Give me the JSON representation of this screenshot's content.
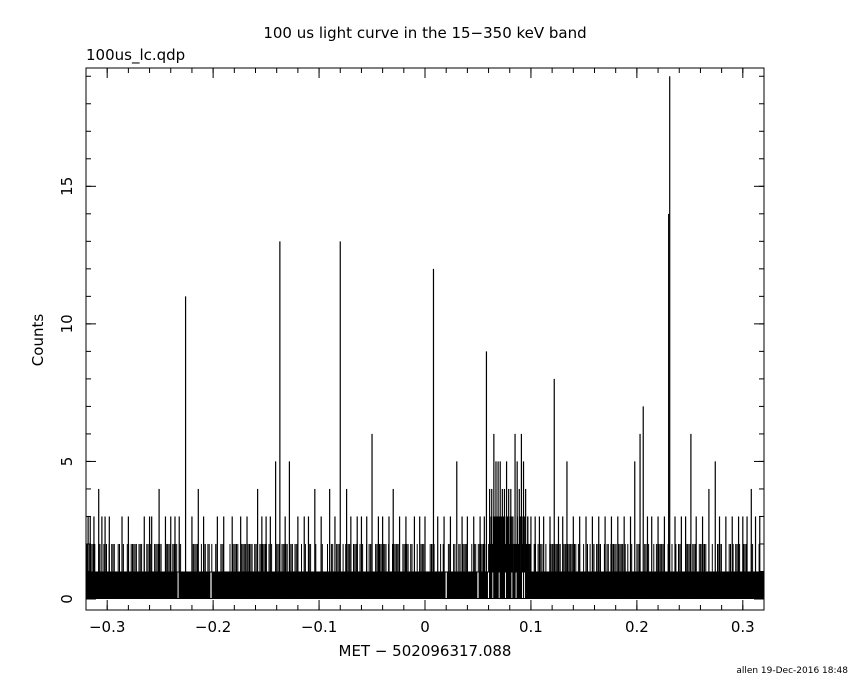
{
  "chart_data": {
    "type": "bar",
    "title": "100 us light curve in the 15−350 keV band",
    "subtitle": "100us_lc.qdp",
    "xlabel": "MET − 502096317.088",
    "ylabel": "Counts",
    "footer": "allen 19-Dec-2016 18:48",
    "xlim": [
      -0.32,
      0.32
    ],
    "ylim": [
      -0.4,
      19.3
    ],
    "bin_width": 0.0001,
    "xticks": [
      -0.3,
      -0.2,
      -0.1,
      0,
      0.1,
      0.2,
      0.3
    ],
    "xtick_labels": [
      "−0.3",
      "−0.2",
      "−0.1",
      "0",
      "0.1",
      "0.2",
      "0.3"
    ],
    "yticks": [
      0,
      5,
      10,
      15
    ],
    "ytick_labels": [
      "0",
      "5",
      "10",
      "15"
    ],
    "grid": false,
    "baseline": 1,
    "background_twos": {
      "x_ranges": [
        [
          -0.32,
          0.32
        ]
      ],
      "description_value": 2
    },
    "peaks": [
      {
        "x": -0.318,
        "y": 3
      },
      {
        "x": -0.316,
        "y": 3
      },
      {
        "x": -0.3125,
        "y": 3
      },
      {
        "x": -0.308,
        "y": 4
      },
      {
        "x": -0.305,
        "y": 3
      },
      {
        "x": -0.302,
        "y": 3
      },
      {
        "x": -0.298,
        "y": 3
      },
      {
        "x": -0.286,
        "y": 3
      },
      {
        "x": -0.28,
        "y": 3
      },
      {
        "x": -0.265,
        "y": 3
      },
      {
        "x": -0.26,
        "y": 3
      },
      {
        "x": -0.258,
        "y": 3
      },
      {
        "x": -0.251,
        "y": 4
      },
      {
        "x": -0.245,
        "y": 3
      },
      {
        "x": -0.24,
        "y": 3
      },
      {
        "x": -0.236,
        "y": 3
      },
      {
        "x": -0.232,
        "y": 3
      },
      {
        "x": -0.226,
        "y": 11
      },
      {
        "x": -0.22,
        "y": 3
      },
      {
        "x": -0.214,
        "y": 4
      },
      {
        "x": -0.209,
        "y": 3
      },
      {
        "x": -0.196,
        "y": 3
      },
      {
        "x": -0.19,
        "y": 3
      },
      {
        "x": -0.182,
        "y": 3
      },
      {
        "x": -0.174,
        "y": 3
      },
      {
        "x": -0.168,
        "y": 3
      },
      {
        "x": -0.158,
        "y": 4
      },
      {
        "x": -0.154,
        "y": 3
      },
      {
        "x": -0.15,
        "y": 3
      },
      {
        "x": -0.146,
        "y": 3
      },
      {
        "x": -0.141,
        "y": 5
      },
      {
        "x": -0.137,
        "y": 13
      },
      {
        "x": -0.132,
        "y": 3
      },
      {
        "x": -0.128,
        "y": 5
      },
      {
        "x": -0.12,
        "y": 3
      },
      {
        "x": -0.114,
        "y": 3
      },
      {
        "x": -0.11,
        "y": 3
      },
      {
        "x": -0.104,
        "y": 4
      },
      {
        "x": -0.098,
        "y": 3
      },
      {
        "x": -0.09,
        "y": 4
      },
      {
        "x": -0.085,
        "y": 3
      },
      {
        "x": -0.08,
        "y": 13
      },
      {
        "x": -0.074,
        "y": 4
      },
      {
        "x": -0.07,
        "y": 3
      },
      {
        "x": -0.064,
        "y": 3
      },
      {
        "x": -0.06,
        "y": 3
      },
      {
        "x": -0.055,
        "y": 3
      },
      {
        "x": -0.05,
        "y": 6
      },
      {
        "x": -0.044,
        "y": 3
      },
      {
        "x": -0.04,
        "y": 3
      },
      {
        "x": -0.034,
        "y": 3
      },
      {
        "x": -0.03,
        "y": 4
      },
      {
        "x": -0.024,
        "y": 3
      },
      {
        "x": -0.018,
        "y": 3
      },
      {
        "x": -0.01,
        "y": 3
      },
      {
        "x": -0.005,
        "y": 3
      },
      {
        "x": 0.0,
        "y": 3
      },
      {
        "x": 0.008,
        "y": 12
      },
      {
        "x": 0.012,
        "y": 3
      },
      {
        "x": 0.018,
        "y": 3
      },
      {
        "x": 0.024,
        "y": 3
      },
      {
        "x": 0.03,
        "y": 5
      },
      {
        "x": 0.035,
        "y": 3
      },
      {
        "x": 0.04,
        "y": 3
      },
      {
        "x": 0.046,
        "y": 3
      },
      {
        "x": 0.052,
        "y": 3
      },
      {
        "x": 0.056,
        "y": 3
      },
      {
        "x": 0.058,
        "y": 9
      },
      {
        "x": 0.061,
        "y": 4
      },
      {
        "x": 0.063,
        "y": 4
      },
      {
        "x": 0.065,
        "y": 6
      },
      {
        "x": 0.067,
        "y": 5
      },
      {
        "x": 0.069,
        "y": 5
      },
      {
        "x": 0.071,
        "y": 5
      },
      {
        "x": 0.073,
        "y": 4
      },
      {
        "x": 0.075,
        "y": 4
      },
      {
        "x": 0.077,
        "y": 5
      },
      {
        "x": 0.079,
        "y": 4
      },
      {
        "x": 0.081,
        "y": 4
      },
      {
        "x": 0.083,
        "y": 3
      },
      {
        "x": 0.085,
        "y": 6
      },
      {
        "x": 0.087,
        "y": 5
      },
      {
        "x": 0.089,
        "y": 4
      },
      {
        "x": 0.091,
        "y": 6
      },
      {
        "x": 0.093,
        "y": 5
      },
      {
        "x": 0.095,
        "y": 4
      },
      {
        "x": 0.097,
        "y": 3
      },
      {
        "x": 0.1,
        "y": 3
      },
      {
        "x": 0.104,
        "y": 3
      },
      {
        "x": 0.108,
        "y": 3
      },
      {
        "x": 0.112,
        "y": 3
      },
      {
        "x": 0.118,
        "y": 3
      },
      {
        "x": 0.122,
        "y": 8
      },
      {
        "x": 0.126,
        "y": 3
      },
      {
        "x": 0.13,
        "y": 3
      },
      {
        "x": 0.134,
        "y": 5
      },
      {
        "x": 0.14,
        "y": 3
      },
      {
        "x": 0.146,
        "y": 3
      },
      {
        "x": 0.152,
        "y": 3
      },
      {
        "x": 0.158,
        "y": 3
      },
      {
        "x": 0.164,
        "y": 3
      },
      {
        "x": 0.17,
        "y": 3
      },
      {
        "x": 0.176,
        "y": 3
      },
      {
        "x": 0.182,
        "y": 3
      },
      {
        "x": 0.188,
        "y": 3
      },
      {
        "x": 0.194,
        "y": 3
      },
      {
        "x": 0.198,
        "y": 5
      },
      {
        "x": 0.203,
        "y": 6
      },
      {
        "x": 0.206,
        "y": 7
      },
      {
        "x": 0.21,
        "y": 3
      },
      {
        "x": 0.214,
        "y": 3
      },
      {
        "x": 0.22,
        "y": 3
      },
      {
        "x": 0.226,
        "y": 3
      },
      {
        "x": 0.23,
        "y": 14
      },
      {
        "x": 0.231,
        "y": 19
      },
      {
        "x": 0.236,
        "y": 3
      },
      {
        "x": 0.242,
        "y": 3
      },
      {
        "x": 0.246,
        "y": 3
      },
      {
        "x": 0.251,
        "y": 6
      },
      {
        "x": 0.256,
        "y": 3
      },
      {
        "x": 0.262,
        "y": 3
      },
      {
        "x": 0.268,
        "y": 4
      },
      {
        "x": 0.274,
        "y": 5
      },
      {
        "x": 0.278,
        "y": 3
      },
      {
        "x": 0.284,
        "y": 3
      },
      {
        "x": 0.29,
        "y": 3
      },
      {
        "x": 0.296,
        "y": 3
      },
      {
        "x": 0.3,
        "y": 3
      },
      {
        "x": 0.304,
        "y": 3
      },
      {
        "x": 0.308,
        "y": 4
      },
      {
        "x": 0.312,
        "y": 3
      },
      {
        "x": 0.316,
        "y": 3
      }
    ],
    "zero_gaps": [
      {
        "x": -0.233
      },
      {
        "x": -0.202
      },
      {
        "x": 0.02
      },
      {
        "x": 0.05
      },
      {
        "x": 0.06
      },
      {
        "x": 0.064
      },
      {
        "x": 0.07
      },
      {
        "x": 0.082
      },
      {
        "x": 0.086
      },
      {
        "x": 0.092
      },
      {
        "x": 0.094
      },
      {
        "x": 0.076
      }
    ]
  }
}
